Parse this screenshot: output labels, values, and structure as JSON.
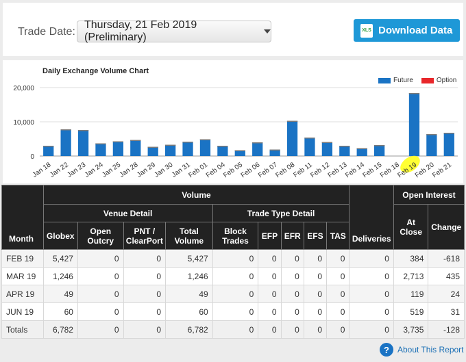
{
  "header": {
    "trade_date_label": "Trade Date:",
    "trade_date_value": "Thursday, 21 Feb 2019 (Preliminary)",
    "download_label": "Download Data",
    "download_icon": "XLS"
  },
  "chart_data": {
    "type": "bar",
    "title": "Daily Exchange Volume Chart",
    "categories": [
      "Jan 18",
      "Jan 22",
      "Jan 23",
      "Jan 24",
      "Jan 25",
      "Jan 28",
      "Jan 29",
      "Jan 30",
      "Jan 31",
      "Feb 01",
      "Feb 04",
      "Feb 05",
      "Feb 06",
      "Feb 07",
      "Feb 08",
      "Feb 11",
      "Feb 12",
      "Feb 13",
      "Feb 14",
      "Feb 15",
      "Feb 18",
      "Feb 19",
      "Feb 20",
      "Feb 21"
    ],
    "highlighted_category": "Feb 19",
    "series": [
      {
        "name": "Future",
        "color": "#1a73c4",
        "values": [
          3000,
          7800,
          7600,
          3700,
          4300,
          4700,
          2700,
          3300,
          4200,
          4900,
          3000,
          1700,
          4000,
          1900,
          10300,
          5400,
          4100,
          3000,
          2300,
          3200,
          0,
          18400,
          6400,
          6800
        ]
      },
      {
        "name": "Option",
        "color": "#e8262a",
        "values": [
          0,
          0,
          0,
          0,
          0,
          0,
          0,
          0,
          0,
          0,
          0,
          0,
          0,
          0,
          0,
          0,
          0,
          0,
          0,
          0,
          0,
          0,
          0,
          0
        ]
      }
    ],
    "yticks": [
      "20,000",
      "10,000",
      "0"
    ],
    "ylim": [
      0,
      20000
    ],
    "legend_position": "top-right"
  },
  "table": {
    "group_volume": "Volume",
    "group_open_interest": "Open Interest",
    "group_venue": "Venue Detail",
    "group_trade_type": "Trade Type Detail",
    "col_month": "Month",
    "col_globex": "Globex",
    "col_open_outcry": "Open Outcry",
    "col_pnt": "PNT / ClearPort",
    "col_total_volume": "Total Volume",
    "col_block": "Block Trades",
    "col_efp": "EFP",
    "col_efr": "EFR",
    "col_efs": "EFS",
    "col_tas": "TAS",
    "col_deliveries": "Deliveries",
    "col_at_close": "At Close",
    "col_change": "Change",
    "rows": [
      {
        "month": "FEB 19",
        "globex": "5,427",
        "outcry": "0",
        "pnt": "0",
        "total": "5,427",
        "block": "0",
        "efp": "0",
        "efr": "0",
        "efs": "0",
        "tas": "0",
        "deliveries": "0",
        "at_close": "384",
        "change": "-618"
      },
      {
        "month": "MAR 19",
        "globex": "1,246",
        "outcry": "0",
        "pnt": "0",
        "total": "1,246",
        "block": "0",
        "efp": "0",
        "efr": "0",
        "efs": "0",
        "tas": "0",
        "deliveries": "0",
        "at_close": "2,713",
        "change": "435"
      },
      {
        "month": "APR 19",
        "globex": "49",
        "outcry": "0",
        "pnt": "0",
        "total": "49",
        "block": "0",
        "efp": "0",
        "efr": "0",
        "efs": "0",
        "tas": "0",
        "deliveries": "0",
        "at_close": "119",
        "change": "24"
      },
      {
        "month": "JUN 19",
        "globex": "60",
        "outcry": "0",
        "pnt": "0",
        "total": "60",
        "block": "0",
        "efp": "0",
        "efr": "0",
        "efs": "0",
        "tas": "0",
        "deliveries": "0",
        "at_close": "519",
        "change": "31"
      }
    ],
    "totals": {
      "month": "Totals",
      "globex": "6,782",
      "outcry": "0",
      "pnt": "0",
      "total": "6,782",
      "block": "0",
      "efp": "0",
      "efr": "0",
      "efs": "0",
      "tas": "0",
      "deliveries": "0",
      "at_close": "3,735",
      "change": "-128"
    }
  },
  "footer": {
    "about_label": "About This Report",
    "help_icon": "?"
  }
}
